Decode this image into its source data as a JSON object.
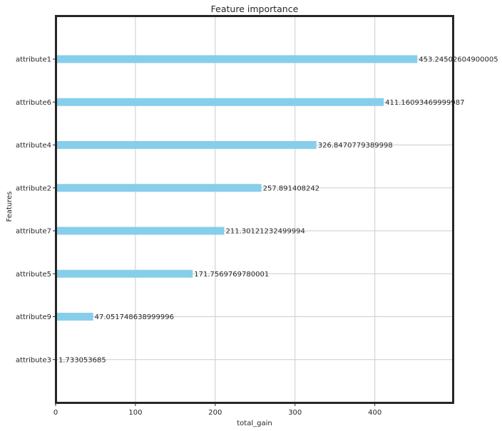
{
  "chart_data": {
    "type": "bar",
    "orientation": "horizontal",
    "title": "Feature importance",
    "xlabel": "total_gain",
    "ylabel": "Features",
    "categories": [
      "attribute1",
      "attribute6",
      "attribute4",
      "attribute2",
      "attribute7",
      "attribute5",
      "attribute9",
      "attribute3"
    ],
    "values": [
      453.24502604900005,
      411.16093469999987,
      326.8470779389998,
      257.891408242,
      211.30121232499994,
      171.7569769780001,
      47.051748638999996,
      1.733053685
    ],
    "value_labels": [
      "453.24502604900005",
      "411.16093469999987",
      "326.8470779389998",
      "257.891408242",
      "211.30121232499994",
      "171.7569769780001",
      "47.051748638999996",
      "1.733053685"
    ],
    "xlim": [
      0,
      498.6
    ],
    "xticks": [
      0,
      100,
      200,
      300,
      400
    ],
    "xtick_labels": [
      "0",
      "100",
      "200",
      "300",
      "400"
    ],
    "grid": true,
    "bar_color": "#87ceeb",
    "frame_color": "#262626",
    "grid_color": "#cccccc",
    "text_color": "#262626"
  }
}
